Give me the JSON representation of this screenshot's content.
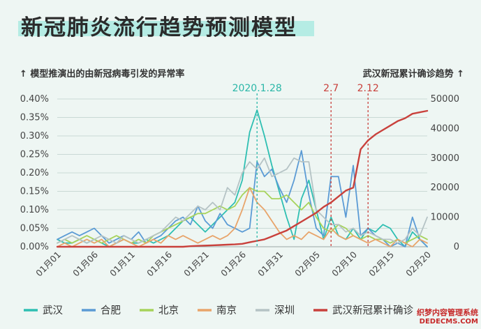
{
  "title": "新冠肺炎流行趋势预测模型",
  "left_axis_note": "↑ 模型推演出的由新冠病毒引发的异常率",
  "right_axis_note": "武汉新冠累计确诊趋势 ↑",
  "watermark": {
    "line1": "织梦内容管理系统",
    "line2": "DEDECMS.COM"
  },
  "chart_data": {
    "type": "line",
    "title": "新冠肺炎流行趋势预测模型",
    "x": [
      "01月01",
      "01月02",
      "01月03",
      "01月04",
      "01月05",
      "01月06",
      "01月07",
      "01月08",
      "01月09",
      "01月10",
      "01月11",
      "01月12",
      "01月13",
      "01月14",
      "01月15",
      "01月16",
      "01月17",
      "01月18",
      "01月19",
      "01月20",
      "01月21",
      "01月22",
      "01月23",
      "01月24",
      "01月25",
      "01月26",
      "01月27",
      "01月28",
      "01月29",
      "01月30",
      "01月31",
      "02月01",
      "02月02",
      "02月03",
      "02月04",
      "02月05",
      "02月06",
      "02月07",
      "02月08",
      "02月09",
      "02月10",
      "02月11",
      "02月12",
      "02月13",
      "02月14",
      "02月15",
      "02月16",
      "02月17",
      "02月18",
      "02月19",
      "02月20"
    ],
    "x_tick_labels": [
      "01月01",
      "01月06",
      "01月11",
      "01月16",
      "01月21",
      "01月26",
      "01月31",
      "02月05",
      "02月10",
      "02月15",
      "02月20"
    ],
    "y_left": {
      "min": 0,
      "max": 0.4,
      "ticks": [
        "0.00%",
        "0.05%",
        "0.10%",
        "0.15%",
        "0.20%",
        "0.25%",
        "0.30%",
        "0.35%",
        "0.40%"
      ]
    },
    "y_right": {
      "min": 0,
      "max": 50000,
      "ticks": [
        "0",
        "10000",
        "20000",
        "30000",
        "40000",
        "50000"
      ]
    },
    "grid": "horizontal",
    "legend_position": "bottom",
    "annotations": [
      {
        "label": "2020.1.28",
        "x_index": 27,
        "color": "#2bb7a8"
      },
      {
        "label": "2.7",
        "x_index": 37,
        "color": "#c9413c"
      },
      {
        "label": "2.12",
        "x_index": 42,
        "color": "#c9413c"
      }
    ],
    "series": [
      {
        "name": "武汉",
        "axis": "left",
        "color": "#2ebfb2",
        "values": [
          0.02,
          0.01,
          0.01,
          0.02,
          0.01,
          0.02,
          0.01,
          0.0,
          0.01,
          0.02,
          0.01,
          0.01,
          0.02,
          0.01,
          0.02,
          0.03,
          0.05,
          0.07,
          0.08,
          0.06,
          0.04,
          0.06,
          0.08,
          0.1,
          0.12,
          0.18,
          0.31,
          0.37,
          0.3,
          0.22,
          0.15,
          0.08,
          0.02,
          0.13,
          0.18,
          0.1,
          0.02,
          0.08,
          0.03,
          0.02,
          0.05,
          0.02,
          0.05,
          0.04,
          0.06,
          0.05,
          0.02,
          0.0,
          0.04,
          0.02,
          0.0
        ]
      },
      {
        "name": "合肥",
        "axis": "left",
        "color": "#5b9bd5",
        "values": [
          0.02,
          0.03,
          0.04,
          0.03,
          0.04,
          0.05,
          0.03,
          0.01,
          0.02,
          0.03,
          0.02,
          0.04,
          0.01,
          0.02,
          0.03,
          0.05,
          0.07,
          0.08,
          0.06,
          0.11,
          0.07,
          0.05,
          0.09,
          0.06,
          0.05,
          0.04,
          0.05,
          0.23,
          0.19,
          0.21,
          0.16,
          0.12,
          0.18,
          0.26,
          0.14,
          0.05,
          0.03,
          0.19,
          0.19,
          0.08,
          0.22,
          0.03,
          0.05,
          0.03,
          0.02,
          0.0,
          0.01,
          0.0,
          0.08,
          0.02,
          0.0
        ]
      },
      {
        "name": "北京",
        "axis": "left",
        "color": "#a6d35a",
        "values": [
          0.01,
          0.02,
          0.01,
          0.02,
          0.03,
          0.02,
          0.01,
          0.02,
          0.03,
          0.02,
          0.01,
          0.02,
          0.01,
          0.03,
          0.04,
          0.05,
          0.06,
          0.07,
          0.08,
          0.09,
          0.09,
          0.1,
          0.11,
          0.1,
          0.11,
          0.14,
          0.16,
          0.15,
          0.15,
          0.13,
          0.13,
          0.14,
          0.12,
          0.1,
          0.12,
          0.08,
          0.05,
          0.04,
          0.06,
          0.05,
          0.03,
          0.02,
          0.03,
          0.02,
          0.02,
          0.01,
          0.02,
          0.01,
          0.02,
          0.03,
          0.02
        ]
      },
      {
        "name": "南京",
        "axis": "left",
        "color": "#e8a46a",
        "values": [
          0.0,
          0.01,
          0.0,
          0.01,
          0.02,
          0.01,
          0.02,
          0.0,
          0.01,
          0.02,
          0.01,
          0.0,
          0.01,
          0.02,
          0.01,
          0.03,
          0.02,
          0.03,
          0.02,
          0.01,
          0.02,
          0.03,
          0.02,
          0.03,
          0.05,
          0.1,
          0.16,
          0.12,
          0.1,
          0.07,
          0.04,
          0.02,
          0.03,
          0.02,
          0.04,
          0.03,
          0.02,
          0.05,
          0.03,
          0.02,
          0.03,
          0.02,
          0.01,
          0.02,
          0.01,
          0.0,
          0.02,
          0.01,
          0.0,
          0.02,
          0.01
        ]
      },
      {
        "name": "深圳",
        "axis": "left",
        "color": "#b5c3c5",
        "values": [
          0.01,
          0.02,
          0.03,
          0.02,
          0.01,
          0.02,
          0.03,
          0.02,
          0.01,
          0.03,
          0.02,
          0.01,
          0.02,
          0.03,
          0.04,
          0.06,
          0.08,
          0.07,
          0.09,
          0.11,
          0.1,
          0.12,
          0.1,
          0.16,
          0.14,
          0.2,
          0.23,
          0.21,
          0.24,
          0.19,
          0.2,
          0.21,
          0.24,
          0.23,
          0.23,
          0.1,
          0.08,
          0.06,
          0.06,
          0.04,
          0.05,
          0.03,
          0.04,
          0.03,
          0.02,
          0.02,
          0.01,
          0.02,
          0.05,
          0.03,
          0.08
        ]
      },
      {
        "name": "武汉新冠累计确诊",
        "axis": "right",
        "color": "#c9413c",
        "values": [
          0,
          0,
          0,
          0,
          0,
          0,
          0,
          0,
          0,
          0,
          0,
          0,
          0,
          0,
          0,
          0,
          0,
          0,
          200,
          300,
          400,
          500,
          600,
          700,
          800,
          1000,
          1500,
          2000,
          2500,
          3500,
          4500,
          5500,
          7000,
          8500,
          10000,
          11500,
          13500,
          15000,
          17000,
          19000,
          20000,
          33000,
          36000,
          38000,
          39500,
          41000,
          42500,
          43500,
          45000,
          45500,
          46000
        ]
      }
    ]
  }
}
